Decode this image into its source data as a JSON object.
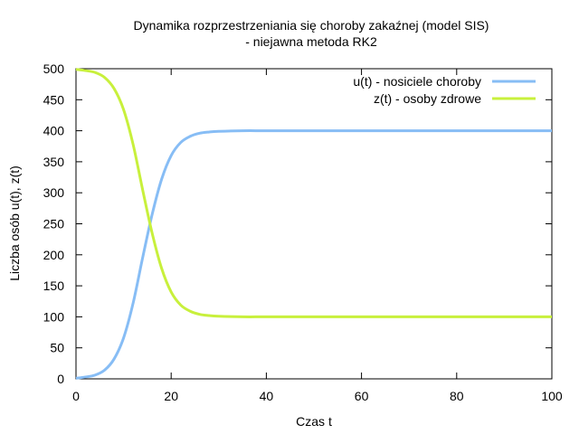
{
  "chart_data": {
    "type": "line",
    "title_line1": "Dynamika rozprzestrzeniania się choroby zakaźnej (model SIS)",
    "title_line2": "- niejawna metoda RK2",
    "xlabel": "Czas  t",
    "ylabel": "Liczba osób u(t), z(t)",
    "xlim": [
      0,
      100
    ],
    "ylim": [
      0,
      500
    ],
    "xticks": [
      0,
      20,
      40,
      60,
      80,
      100
    ],
    "yticks": [
      0,
      50,
      100,
      150,
      200,
      250,
      300,
      350,
      400,
      450,
      500
    ],
    "grid": false,
    "legend_position": "top-right",
    "series": [
      {
        "name": "u(t) - nosiciele choroby",
        "color": "#87bdf5",
        "x": [
          0,
          2,
          4,
          6,
          8,
          10,
          12,
          14,
          16,
          18,
          20,
          22,
          24,
          26,
          28,
          30,
          35,
          40,
          50,
          60,
          70,
          80,
          90,
          100
        ],
        "y": [
          1,
          3,
          6,
          14,
          32,
          66,
          122,
          195,
          265,
          322,
          360,
          381,
          391,
          396,
          398,
          399,
          400,
          400,
          400,
          400,
          400,
          400,
          400,
          400
        ]
      },
      {
        "name": "z(t) - osoby zdrowe",
        "color": "#c8f03c",
        "x": [
          0,
          2,
          4,
          6,
          8,
          10,
          12,
          14,
          16,
          18,
          20,
          22,
          24,
          26,
          28,
          30,
          35,
          40,
          50,
          60,
          70,
          80,
          90,
          100
        ],
        "y": [
          499,
          497,
          494,
          486,
          468,
          434,
          378,
          305,
          235,
          178,
          140,
          119,
          109,
          104,
          102,
          101,
          100,
          100,
          100,
          100,
          100,
          100,
          100,
          100
        ]
      }
    ]
  }
}
